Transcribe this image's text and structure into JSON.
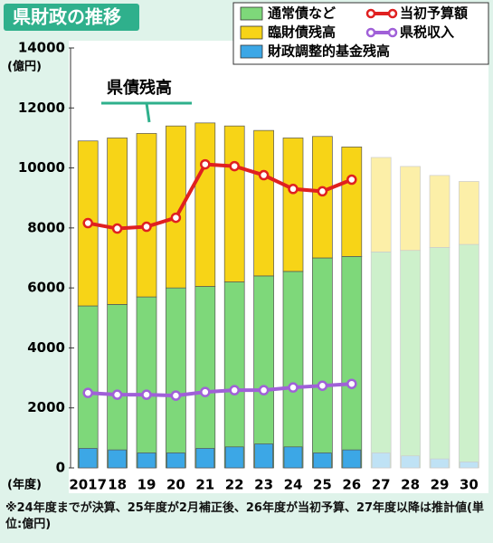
{
  "chart_data": {
    "type": "bar",
    "title": "県財政の推移",
    "y_label": "(億円)",
    "x_label": "(年度)",
    "annotation": "県債残高",
    "footnote": "※24年度までが決算、25年度が2月補正後、26年度が当初予算、27年度以降は推計値(単位:億円)",
    "categories": [
      "2017",
      "18",
      "19",
      "20",
      "21",
      "22",
      "23",
      "24",
      "25",
      "26",
      "27",
      "28",
      "29",
      "30"
    ],
    "ylim": [
      0,
      14000
    ],
    "yticks": [
      0,
      2000,
      4000,
      6000,
      8000,
      10000,
      12000,
      14000
    ],
    "series": [
      {
        "name": "通常債など",
        "stack": true,
        "values": [
          5400,
          5450,
          5700,
          6000,
          6050,
          6200,
          6400,
          6550,
          7000,
          7050,
          7200,
          7250,
          7350,
          7450
        ],
        "colors": [
          "#7ed87a",
          "#7ed87a",
          "#7ed87a",
          "#7ed87a",
          "#7ed87a",
          "#7ed87a",
          "#7ed87a",
          "#7ed87a",
          "#7ed87a",
          "#7ed87a",
          "#cdf0cb",
          "#cdf0cb",
          "#cdf0cb",
          "#cdf0cb"
        ]
      },
      {
        "name": "臨財債残高",
        "stack": true,
        "values": [
          5500,
          5550,
          5450,
          5400,
          5450,
          5200,
          4850,
          4450,
          4050,
          3650,
          3150,
          2800,
          2400,
          2100
        ],
        "colors": [
          "#f7d417",
          "#f7d417",
          "#f7d417",
          "#f7d417",
          "#f7d417",
          "#f7d417",
          "#f7d417",
          "#f7d417",
          "#f7d417",
          "#f7d417",
          "#fcefa8",
          "#fcefa8",
          "#fcefa8",
          "#fcefa8"
        ]
      },
      {
        "name": "財政調整的基金残高",
        "stack": false,
        "values": [
          650,
          600,
          500,
          500,
          650,
          700,
          800,
          700,
          500,
          600,
          500,
          400,
          300,
          200
        ],
        "colors": [
          "#3ca7e6",
          "#3ca7e6",
          "#3ca7e6",
          "#3ca7e6",
          "#3ca7e6",
          "#3ca7e6",
          "#3ca7e6",
          "#3ca7e6",
          "#3ca7e6",
          "#3ca7e6",
          "#bfe2f5",
          "#bfe2f5",
          "#bfe2f5",
          "#bfe2f5"
        ]
      },
      {
        "name": "当初予算額",
        "line": true,
        "color": "#e02020",
        "values": [
          8160,
          7980,
          8040,
          8340,
          10120,
          10060,
          9760,
          9300,
          9220,
          9610,
          null,
          null,
          null,
          null
        ]
      },
      {
        "name": "県税収入",
        "line": true,
        "color": "#a060d8",
        "values": [
          2500,
          2440,
          2440,
          2410,
          2530,
          2590,
          2590,
          2680,
          2740,
          2800,
          null,
          null,
          null,
          null
        ]
      }
    ]
  }
}
